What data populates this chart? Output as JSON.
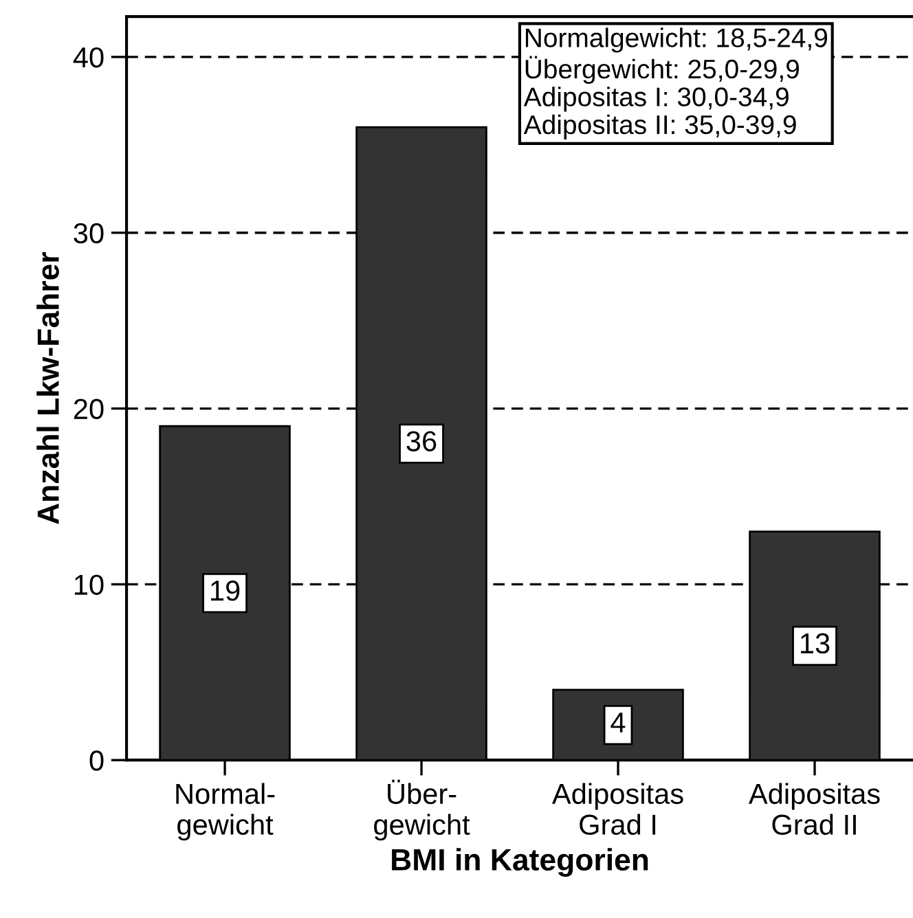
{
  "chart_data": {
    "type": "bar",
    "xlabel": "BMI in Kategorien",
    "ylabel": "Anzahl Lkw-Fahrer",
    "categories": [
      "Normal-\ngewicht",
      "Über-\ngewicht",
      "Adipositas\nGrad I",
      "Adipositas\nGrad II"
    ],
    "values": [
      19,
      36,
      4,
      13
    ],
    "color": "#333333",
    "ylim": [
      0,
      42.3
    ],
    "yticks": [
      0,
      10,
      20,
      30,
      40
    ],
    "grid": "y",
    "data_labels": true,
    "annotations": [
      "Normalgewicht: 18,5-24,9\nÜbergewicht: 25,0-29,9\nAdipositas I: 30,0-34,9\nAdipositas II: 35,0-39,9"
    ]
  }
}
